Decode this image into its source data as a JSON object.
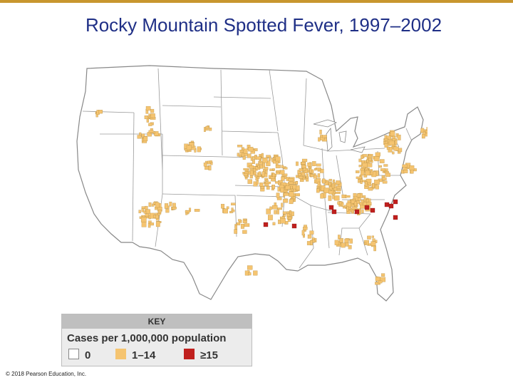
{
  "title": "Rocky Mountain Spotted Fever, 1997–2002",
  "key": {
    "heading": "KEY",
    "subtitle": "Cases per 1,000,000 population",
    "items": [
      {
        "label": "0",
        "color": "#ffffff"
      },
      {
        "label": "1–14",
        "color": "#f5c470"
      },
      {
        "label": "≥15",
        "color": "#c0201e"
      }
    ]
  },
  "colors": {
    "background": "#ffffff",
    "title": "#1f2f86",
    "land": "#ffffff",
    "border": "#888888",
    "accent_rule": "#c8962e"
  },
  "copyright": "© 2018 Pearson Education, Inc."
}
